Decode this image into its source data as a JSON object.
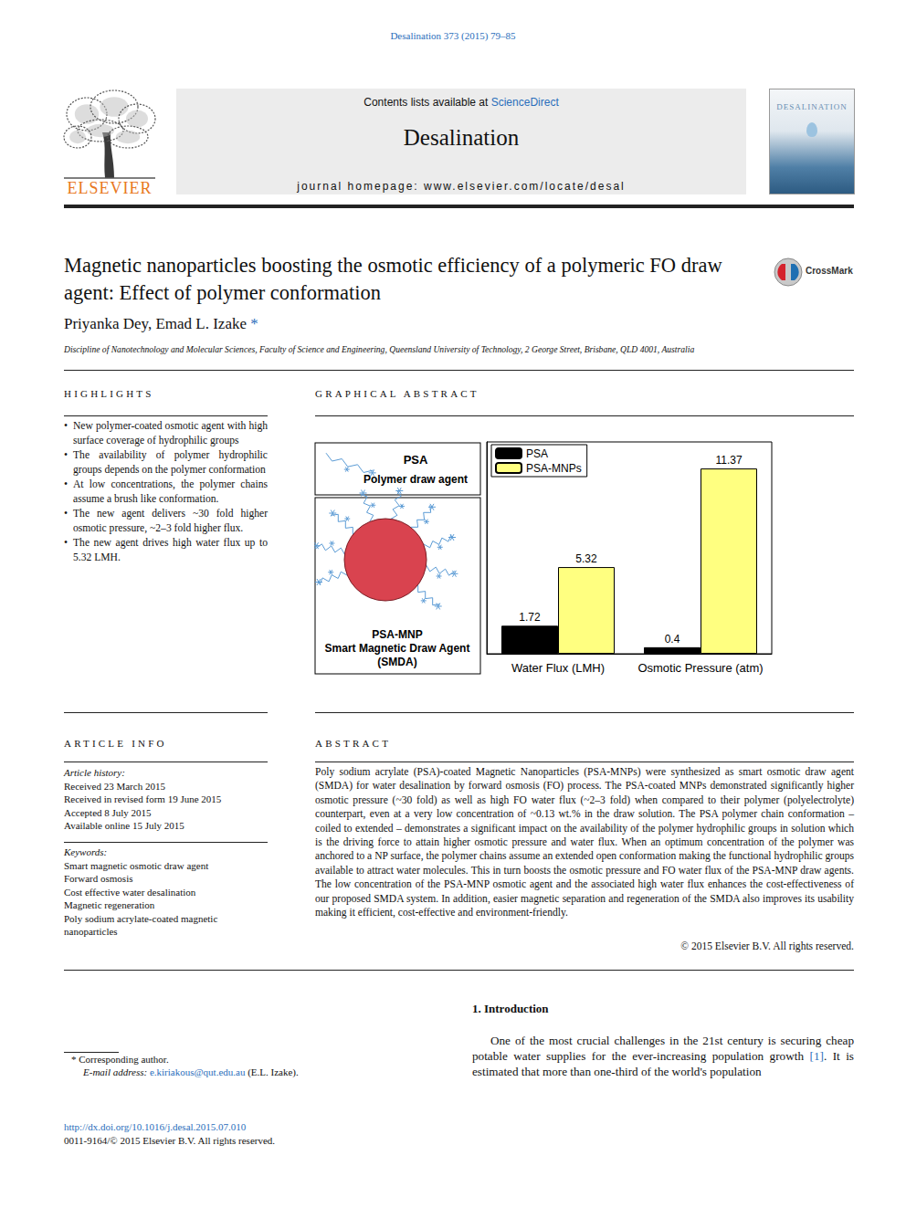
{
  "header": {
    "citation": "Desalination 373 (2015) 79–85",
    "contents_prefix": "Contents lists available at",
    "contents_link": "ScienceDirect",
    "journal": "Desalination",
    "homepage": "journal homepage: www.elsevier.com/locate/desal",
    "publisher": "ELSEVIER",
    "cover_title": "DESALINATION"
  },
  "title": "Magnetic nanoparticles boosting the osmotic efficiency of a polymeric FO draw agent: Effect of polymer conformation",
  "crossmark": "CrossMark",
  "authors": "Priyanka Dey, Emad L. Izake",
  "author_mark": "*",
  "affiliation": "Discipline of Nanotechnology and Molecular Sciences, Faculty of Science and Engineering, Queensland University of Technology, 2 George Street, Brisbane, QLD 4001, Australia",
  "highlights": {
    "heading": "Highlights",
    "items": [
      "New polymer-coated osmotic agent with high surface coverage of hydrophilic groups",
      "The availability of polymer hydrophilic groups depends on the polymer conformation",
      "At low concentrations, the polymer chains assume a brush like conformation.",
      "The new agent delivers ~30 fold higher osmotic pressure, ~2–3 fold higher flux.",
      "The new agent drives high water flux up to 5.32 LMH."
    ]
  },
  "graphical_abstract": {
    "heading": "Graphical abstract",
    "panel_top": [
      "PSA",
      "Polymer draw agent"
    ],
    "panel_bottom": [
      "PSA-MNP",
      "Smart Magnetic Draw Agent",
      "(SMDA)"
    ]
  },
  "chart_data": {
    "type": "bar",
    "categories": [
      "Water Flux (LMH)",
      "Osmotic Pressure (atm)"
    ],
    "series": [
      {
        "name": "PSA",
        "color": "#000000",
        "values": [
          1.72,
          0.4
        ]
      },
      {
        "name": "PSA-MNPs",
        "color": "#ffff80",
        "values": [
          5.32,
          11.37
        ]
      }
    ],
    "ylim": [
      0,
      13
    ],
    "data_labels": true,
    "legend": "upper left",
    "tick_labels": "x"
  },
  "article_info": {
    "heading": "Article info",
    "history_heading": "Article history:",
    "history": [
      "Received 23 March 2015",
      "Received in revised form 19 June 2015",
      "Accepted 8 July 2015",
      "Available online 15 July 2015"
    ],
    "keywords_heading": "Keywords:",
    "keywords": [
      "Smart magnetic osmotic draw agent",
      "Forward osmosis",
      "Cost effective water desalination",
      "Magnetic regeneration",
      "Poly sodium acrylate-coated magnetic nanoparticles"
    ]
  },
  "abstract": {
    "heading": "Abstract",
    "text": "Poly sodium acrylate (PSA)-coated Magnetic Nanoparticles (PSA-MNPs) were synthesized as smart osmotic draw agent (SMDA) for water desalination by forward osmosis (FO) process. The PSA-coated MNPs demonstrated significantly higher osmotic pressure (~30 fold) as well as high FO water flux (~2–3 fold) when compared to their polymer (polyelectrolyte) counterpart, even at a very low concentration of ~0.13 wt.% in the draw solution. The PSA polymer chain conformation – coiled to extended – demonstrates a significant impact on the availability of the polymer hydrophilic groups in solution which is the driving force to attain higher osmotic pressure and water flux. When an optimum concentration of the polymer was anchored to a NP surface, the polymer chains assume an extended open conformation making the functional hydrophilic groups available to attract water molecules. This in turn boosts the osmotic pressure and FO water flux of the PSA-MNP draw agents. The low concentration of the PSA-MNP osmotic agent and the associated high water flux enhances the cost-effectiveness of our proposed SMDA system. In addition, easier magnetic separation and regeneration of the SMDA also improves its usability making it efficient, cost-effective and environment-friendly.",
    "copyright": "© 2015 Elsevier B.V. All rights reserved."
  },
  "introduction": {
    "heading": "1. Introduction",
    "text_before": "One of the most crucial challenges in the 21st century is securing cheap potable water supplies for the ever-increasing population growth",
    "ref": "[1]",
    "text_after": ". It is estimated that more than one-third of the world's population"
  },
  "footnotes": {
    "corresponding": "* Corresponding author.",
    "email_label": "E-mail address:",
    "email": "e.kiriakous@qut.edu.au",
    "email_name": "(E.L. Izake).",
    "doi": "http://dx.doi.org/10.1016/j.desal.2015.07.010",
    "issn": "0011-9164/© 2015 Elsevier B.V. All rights reserved."
  }
}
